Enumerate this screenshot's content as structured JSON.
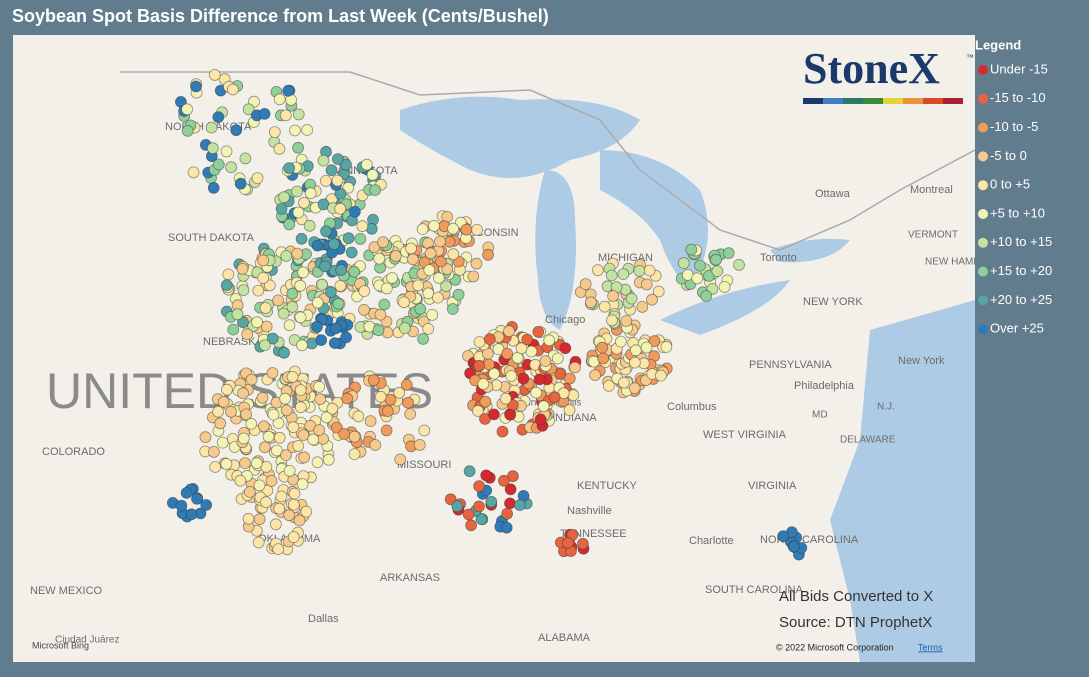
{
  "header": {
    "title": "Soybean Spot Basis Difference from Last Week (Cents/Bushel)"
  },
  "legend": {
    "title": "Legend",
    "items": [
      {
        "label": "Under -15",
        "color": "#d42a2f"
      },
      {
        "label": "-15 to -10",
        "color": "#e8643f"
      },
      {
        "label": "-10 to -5",
        "color": "#f09a5c"
      },
      {
        "label": "-5 to 0",
        "color": "#f6c98c"
      },
      {
        "label": "0 to +5",
        "color": "#fbe6a8"
      },
      {
        "label": "+5 to +10",
        "color": "#f3f4b4"
      },
      {
        "label": "+10 to +15",
        "color": "#c4e2a0"
      },
      {
        "label": "+15 to +20",
        "color": "#8fcf99"
      },
      {
        "label": "+20 to +25",
        "color": "#58a5a6"
      },
      {
        "label": "Over +25",
        "color": "#2f7bb6"
      }
    ]
  },
  "logo": {
    "text": "StoneX",
    "mark": "™"
  },
  "map": {
    "labels": [
      "NORTH DAKOTA",
      "MINNESOTA",
      "SOUTH DAKOTA",
      "WISCONSIN",
      "MICHIGAN",
      "NEBRASKA",
      "UNITED STATES",
      "COLORADO",
      "MISSOURI",
      "KENTUCKY",
      "TENNESSEE",
      "Nashville",
      "OKLAHOMA",
      "ARKANSAS",
      "NEW MEXICO",
      "Dallas",
      "ALABAMA",
      "Chicago",
      "Indianapolis",
      "INDIANA",
      "Columbus",
      "Toronto",
      "Ottawa",
      "Montreal",
      "NEW YORK",
      "New York",
      "PENNSYLVANIA",
      "Philadelphia",
      "WEST VIRGINIA",
      "VIRGINIA",
      "NORTH CAROLINA",
      "Charlotte",
      "SOUTH CAROLINA",
      "DELAWARE",
      "MD",
      "N.J.",
      "VERMONT",
      "NEW HAMPSHIRE",
      "Ciudad Juárez"
    ]
  },
  "notes": [
    "All Bids Converted to X",
    "Source: DTN ProphetX"
  ],
  "attribution": {
    "bing": "Microsoft Bing",
    "copyright": "© 2022 Microsoft Corporation",
    "terms": "Terms"
  }
}
